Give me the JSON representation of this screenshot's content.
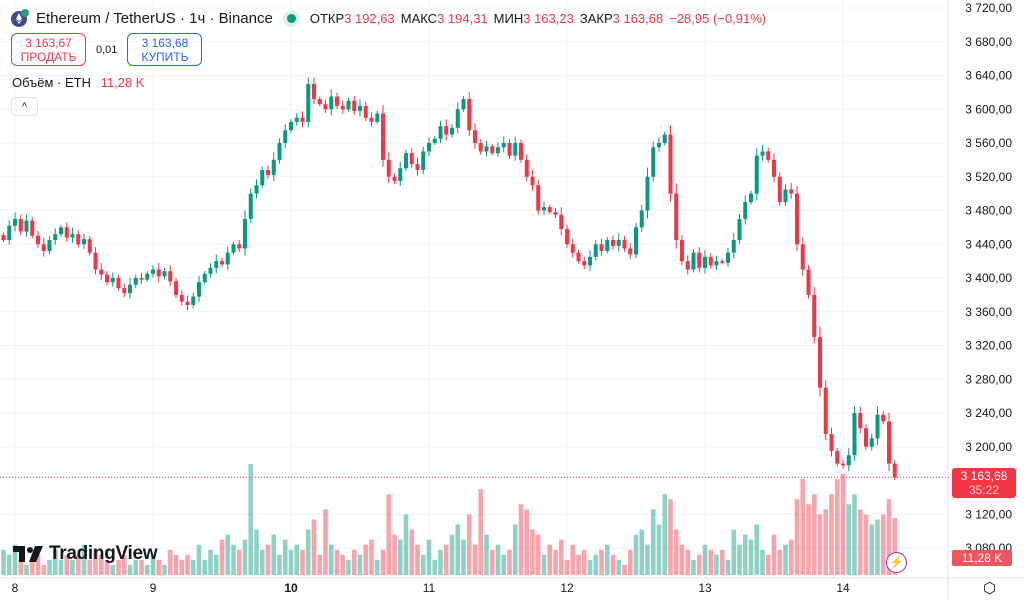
{
  "header": {
    "symbol": "Ethereum / TetherUS · 1ч · Binance",
    "status_color": "#089981",
    "ohlc": [
      {
        "k": "ОТКР",
        "v": "3 192,63"
      },
      {
        "k": "МАКС",
        "v": "3 194,31"
      },
      {
        "k": "МИН",
        "v": "3 163,23"
      },
      {
        "k": "ЗАКР",
        "v": "3 163,68"
      }
    ],
    "change": "−28,95 (−0,91%)"
  },
  "trade": {
    "sell_price": "3 163,67",
    "sell_label": "ПРОДАТЬ",
    "spread": "0,01",
    "buy_price": "3 163,68",
    "buy_label": "КУПИТЬ"
  },
  "volume_legend": {
    "label": "Объём · ETH",
    "value": "11,28 K"
  },
  "collapse_icon": "chevron-up-icon",
  "logo": "TradingView",
  "current_price": {
    "value": "3 163,68",
    "countdown": "35:22"
  },
  "current_volume": "11,28 K",
  "colors": {
    "up": "#089981",
    "down": "#f23645"
  },
  "chart_data": {
    "type": "candlestick",
    "interval": "1h",
    "ylim": [
      3080,
      3720
    ],
    "y_ticks": [
      "3 720,00",
      "3 680,00",
      "3 640,00",
      "3 600,00",
      "3 560,00",
      "3 520,00",
      "3 480,00",
      "3 440,00",
      "3 400,00",
      "3 360,00",
      "3 320,00",
      "3 280,00",
      "3 240,00",
      "3 200,00",
      "3 120,00",
      "3 080,00"
    ],
    "y_tick_values": [
      3720,
      3680,
      3640,
      3600,
      3560,
      3520,
      3480,
      3440,
      3400,
      3360,
      3320,
      3280,
      3240,
      3200,
      3120,
      3080
    ],
    "x_ticks": [
      {
        "label": "8",
        "bold": false
      },
      {
        "label": "9",
        "bold": false
      },
      {
        "label": "10",
        "bold": true
      },
      {
        "label": "11",
        "bold": false
      },
      {
        "label": "12",
        "bold": false
      },
      {
        "label": "13",
        "bold": false
      },
      {
        "label": "14",
        "bold": false
      }
    ],
    "first_candle_hour_offset": -2,
    "close": [
      3445,
      3462,
      3470,
      3455,
      3468,
      3450,
      3440,
      3432,
      3445,
      3452,
      3460,
      3448,
      3452,
      3440,
      3446,
      3430,
      3410,
      3404,
      3395,
      3400,
      3388,
      3382,
      3392,
      3400,
      3398,
      3405,
      3410,
      3402,
      3408,
      3396,
      3380,
      3372,
      3368,
      3378,
      3395,
      3405,
      3412,
      3420,
      3416,
      3430,
      3440,
      3435,
      3470,
      3500,
      3510,
      3528,
      3522,
      3540,
      3560,
      3575,
      3585,
      3590,
      3585,
      3630,
      3612,
      3606,
      3600,
      3615,
      3604,
      3600,
      3610,
      3598,
      3604,
      3590,
      3585,
      3595,
      3540,
      3520,
      3515,
      3530,
      3548,
      3535,
      3528,
      3550,
      3560,
      3565,
      3580,
      3570,
      3578,
      3600,
      3612,
      3575,
      3560,
      3550,
      3556,
      3548,
      3555,
      3560,
      3545,
      3560,
      3540,
      3520,
      3510,
      3480,
      3484,
      3478,
      3475,
      3458,
      3440,
      3430,
      3420,
      3415,
      3425,
      3440,
      3432,
      3445,
      3438,
      3445,
      3435,
      3428,
      3460,
      3480,
      3520,
      3555,
      3560,
      3570,
      3500,
      3445,
      3420,
      3410,
      3430,
      3412,
      3425,
      3415,
      3420,
      3418,
      3430,
      3445,
      3470,
      3490,
      3500,
      3545,
      3550,
      3540,
      3520,
      3490,
      3505,
      3500,
      3440,
      3410,
      3380,
      3330,
      3270,
      3215,
      3195,
      3180,
      3178,
      3190,
      3240,
      3222,
      3200,
      3210,
      3238,
      3230,
      3180,
      3163.68
    ],
    "volume_k": [
      5,
      4,
      6,
      3,
      2,
      3,
      4,
      2,
      3,
      5,
      3,
      4,
      3,
      4,
      6,
      3,
      5,
      4,
      3,
      2,
      3,
      4,
      2,
      3,
      3,
      2,
      4,
      3,
      2,
      5,
      4,
      3,
      4,
      3,
      6,
      3,
      5,
      4,
      7,
      8,
      6,
      5,
      7,
      22,
      9,
      5,
      6,
      8,
      4,
      7,
      5,
      6,
      5,
      9,
      11,
      4,
      13,
      6,
      5,
      4,
      3,
      5,
      4,
      6,
      7,
      3,
      5,
      16,
      8,
      7,
      12,
      9,
      6,
      4,
      7,
      3,
      5,
      6,
      8,
      10,
      7,
      12,
      6,
      17,
      8,
      5,
      6,
      4,
      5,
      10,
      14,
      13,
      9,
      8,
      4,
      6,
      5,
      7,
      3,
      6,
      4,
      5,
      3,
      4,
      5,
      6,
      4,
      3,
      2,
      5,
      8,
      9,
      6,
      13,
      10,
      16,
      15,
      9,
      6,
      5,
      3,
      4,
      6,
      5,
      4,
      5,
      3,
      9,
      6,
      8,
      7,
      10,
      5,
      4,
      8,
      5,
      6,
      7,
      15,
      19,
      14,
      16,
      12,
      13,
      16,
      19,
      20,
      14,
      16,
      13,
      12,
      10,
      11,
      12,
      15,
      11.28
    ]
  }
}
